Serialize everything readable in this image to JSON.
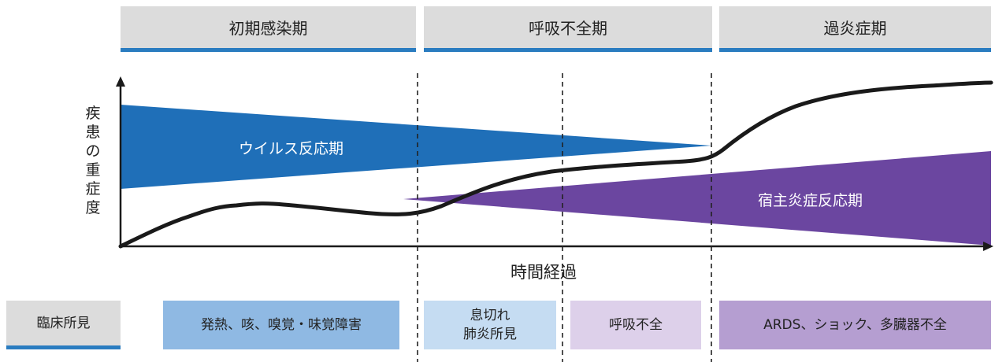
{
  "phases": [
    {
      "label": "初期感染期"
    },
    {
      "label": "呼吸不全期"
    },
    {
      "label": "過炎症期"
    }
  ],
  "axes": {
    "y_label": "疾患の重症度",
    "x_label": "時間経過"
  },
  "bands": {
    "viral": {
      "label": "ウイルス反応期",
      "color": "#1f6fb8"
    },
    "host": {
      "label": "宿主炎症反応期",
      "color": "#6b46a0"
    }
  },
  "clinical": {
    "header": "臨床所見",
    "items": [
      {
        "lines": [
          "発熱、咳、嗅覚・味覚障害"
        ],
        "color": "#8fb9e3"
      },
      {
        "lines": [
          "息切れ",
          "肺炎所見"
        ],
        "color": "#c5dcf2"
      },
      {
        "lines": [
          "呼吸不全"
        ],
        "color": "#ddd0ea"
      },
      {
        "lines": [
          "ARDS、ショック、多臓器不全"
        ],
        "color": "#b59ed1"
      }
    ]
  },
  "colors": {
    "phase_bg": "#dcdcdc",
    "accent_line": "#2a7cc0",
    "curve": "#1a1a1a"
  }
}
